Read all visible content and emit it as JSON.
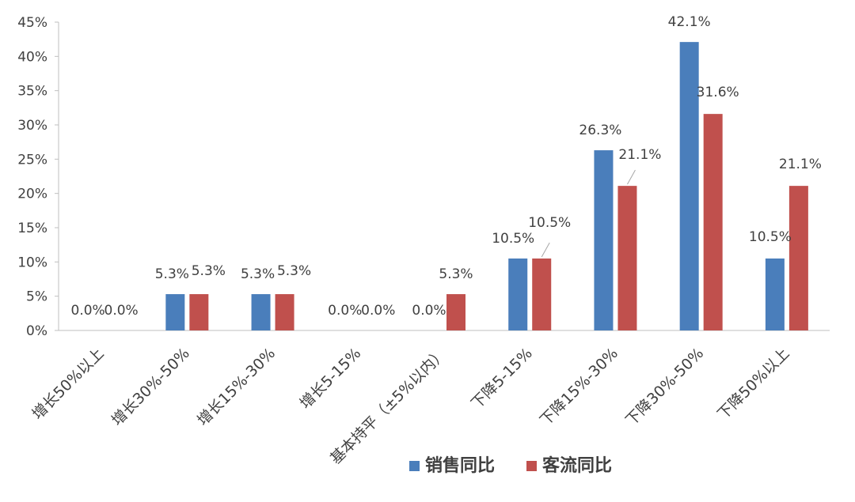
{
  "chart_data": {
    "type": "bar",
    "categories": [
      "增长50%以上",
      "增长30%-50%",
      "增长15%-30%",
      "增长5-15%",
      "基本持平（±5%以内）",
      "下降5-15%",
      "下降15%-30%",
      "下降30%-50%",
      "下降50%以上"
    ],
    "series": [
      {
        "name": "销售同比",
        "color": "#4a7ebb",
        "values": [
          0.0,
          5.3,
          5.3,
          0.0,
          0.0,
          10.5,
          26.3,
          42.1,
          10.5
        ],
        "labels": [
          "0.0%",
          "5.3%",
          "5.3%",
          "0.0%",
          "0.0%",
          "10.5%",
          "26.3%",
          "42.1%",
          "10.5%"
        ]
      },
      {
        "name": "客流同比",
        "color": "#c0504d",
        "values": [
          0.0,
          5.3,
          5.3,
          0.0,
          5.3,
          10.5,
          21.1,
          31.6,
          21.1
        ],
        "labels": [
          "0.0%",
          "5.3%",
          "5.3%",
          "0.0%",
          "5.3%",
          "10.5%",
          "21.1%",
          "31.6%",
          "21.1%"
        ]
      }
    ],
    "yticks": [
      "0%",
      "5%",
      "10%",
      "15%",
      "20%",
      "25%",
      "30%",
      "35%",
      "40%",
      "45%"
    ],
    "ylim": [
      0,
      45
    ],
    "grid": false,
    "legend_position": "bottom"
  }
}
